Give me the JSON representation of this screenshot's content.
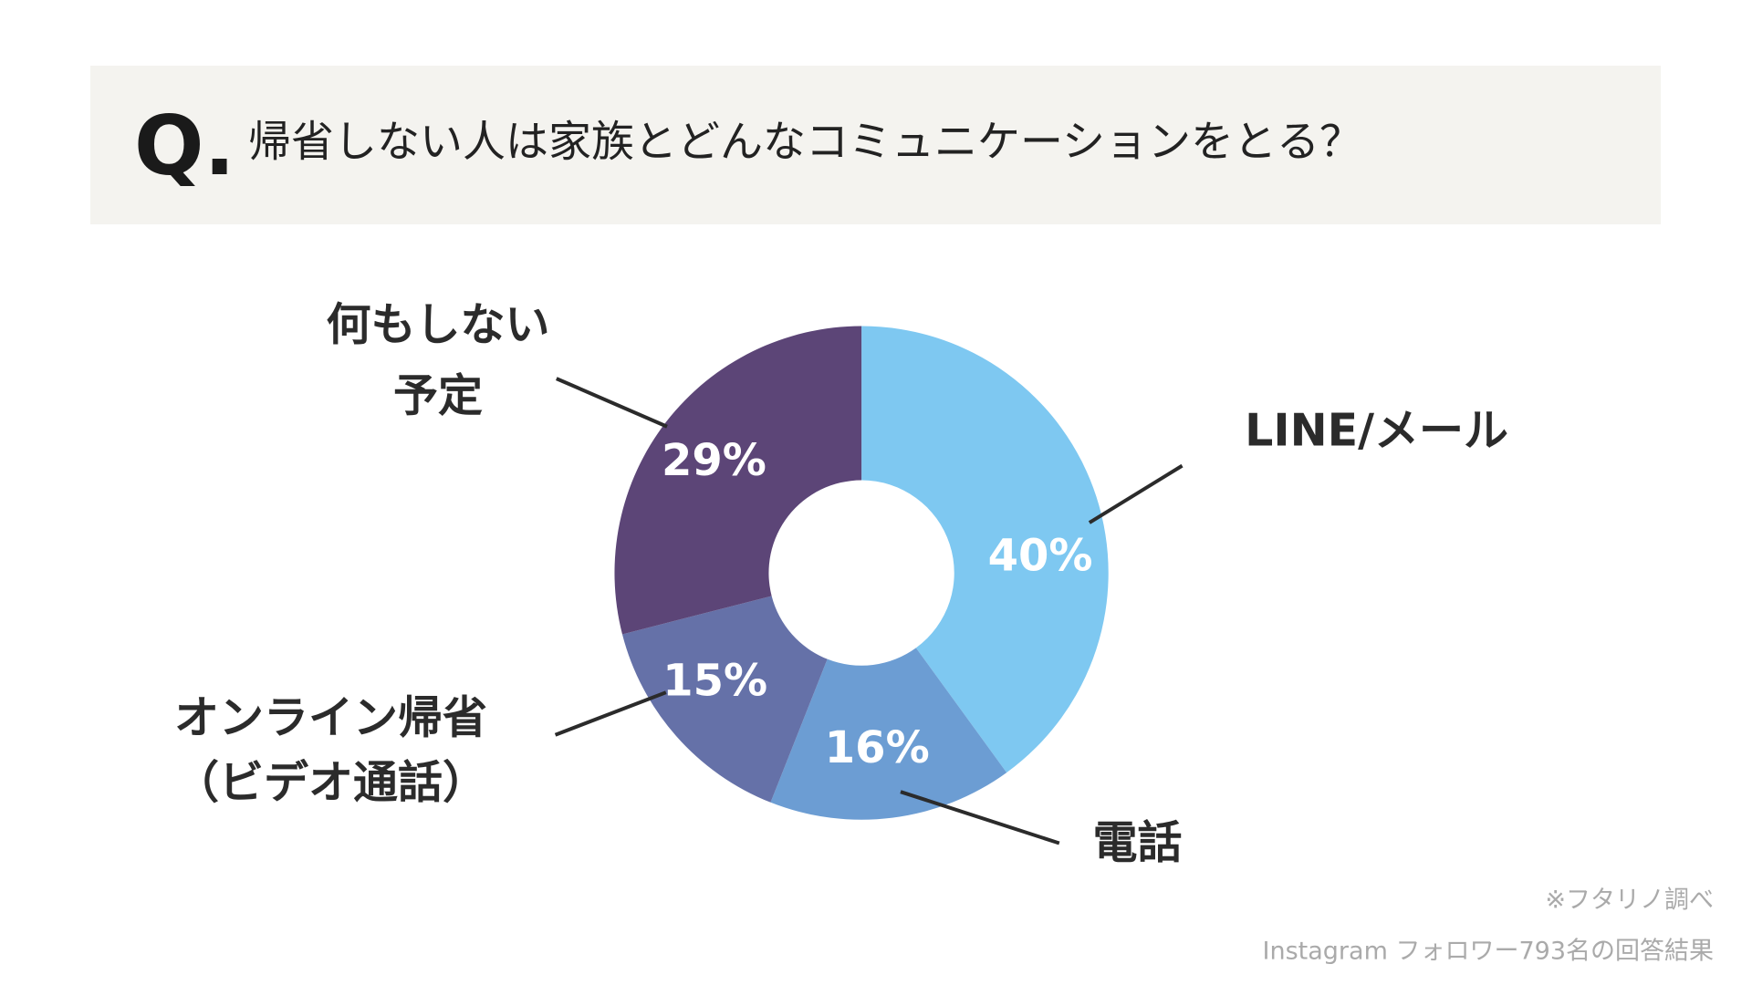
{
  "header": {
    "prefix": "Q.",
    "title": "帰省しない人は家族とどんなコミュニケーションをとる？"
  },
  "chart_data": {
    "type": "donut",
    "categories": [
      [
        "LINE/メール"
      ],
      [
        "電話"
      ],
      [
        "オンライン帰省",
        "（ビデオ通話）"
      ],
      [
        "何もしない",
        "予定"
      ]
    ],
    "values": [
      40,
      16,
      15,
      29
    ],
    "value_labels": [
      "40%",
      "16%",
      "15%",
      "29%"
    ],
    "colors": [
      "#7ec8f1",
      "#6c9dd3",
      "#6571a8",
      "#5c4577"
    ]
  },
  "footer": {
    "source": "※フタリノ調べ",
    "note": "Instagram フォロワー793名の回答結果"
  }
}
